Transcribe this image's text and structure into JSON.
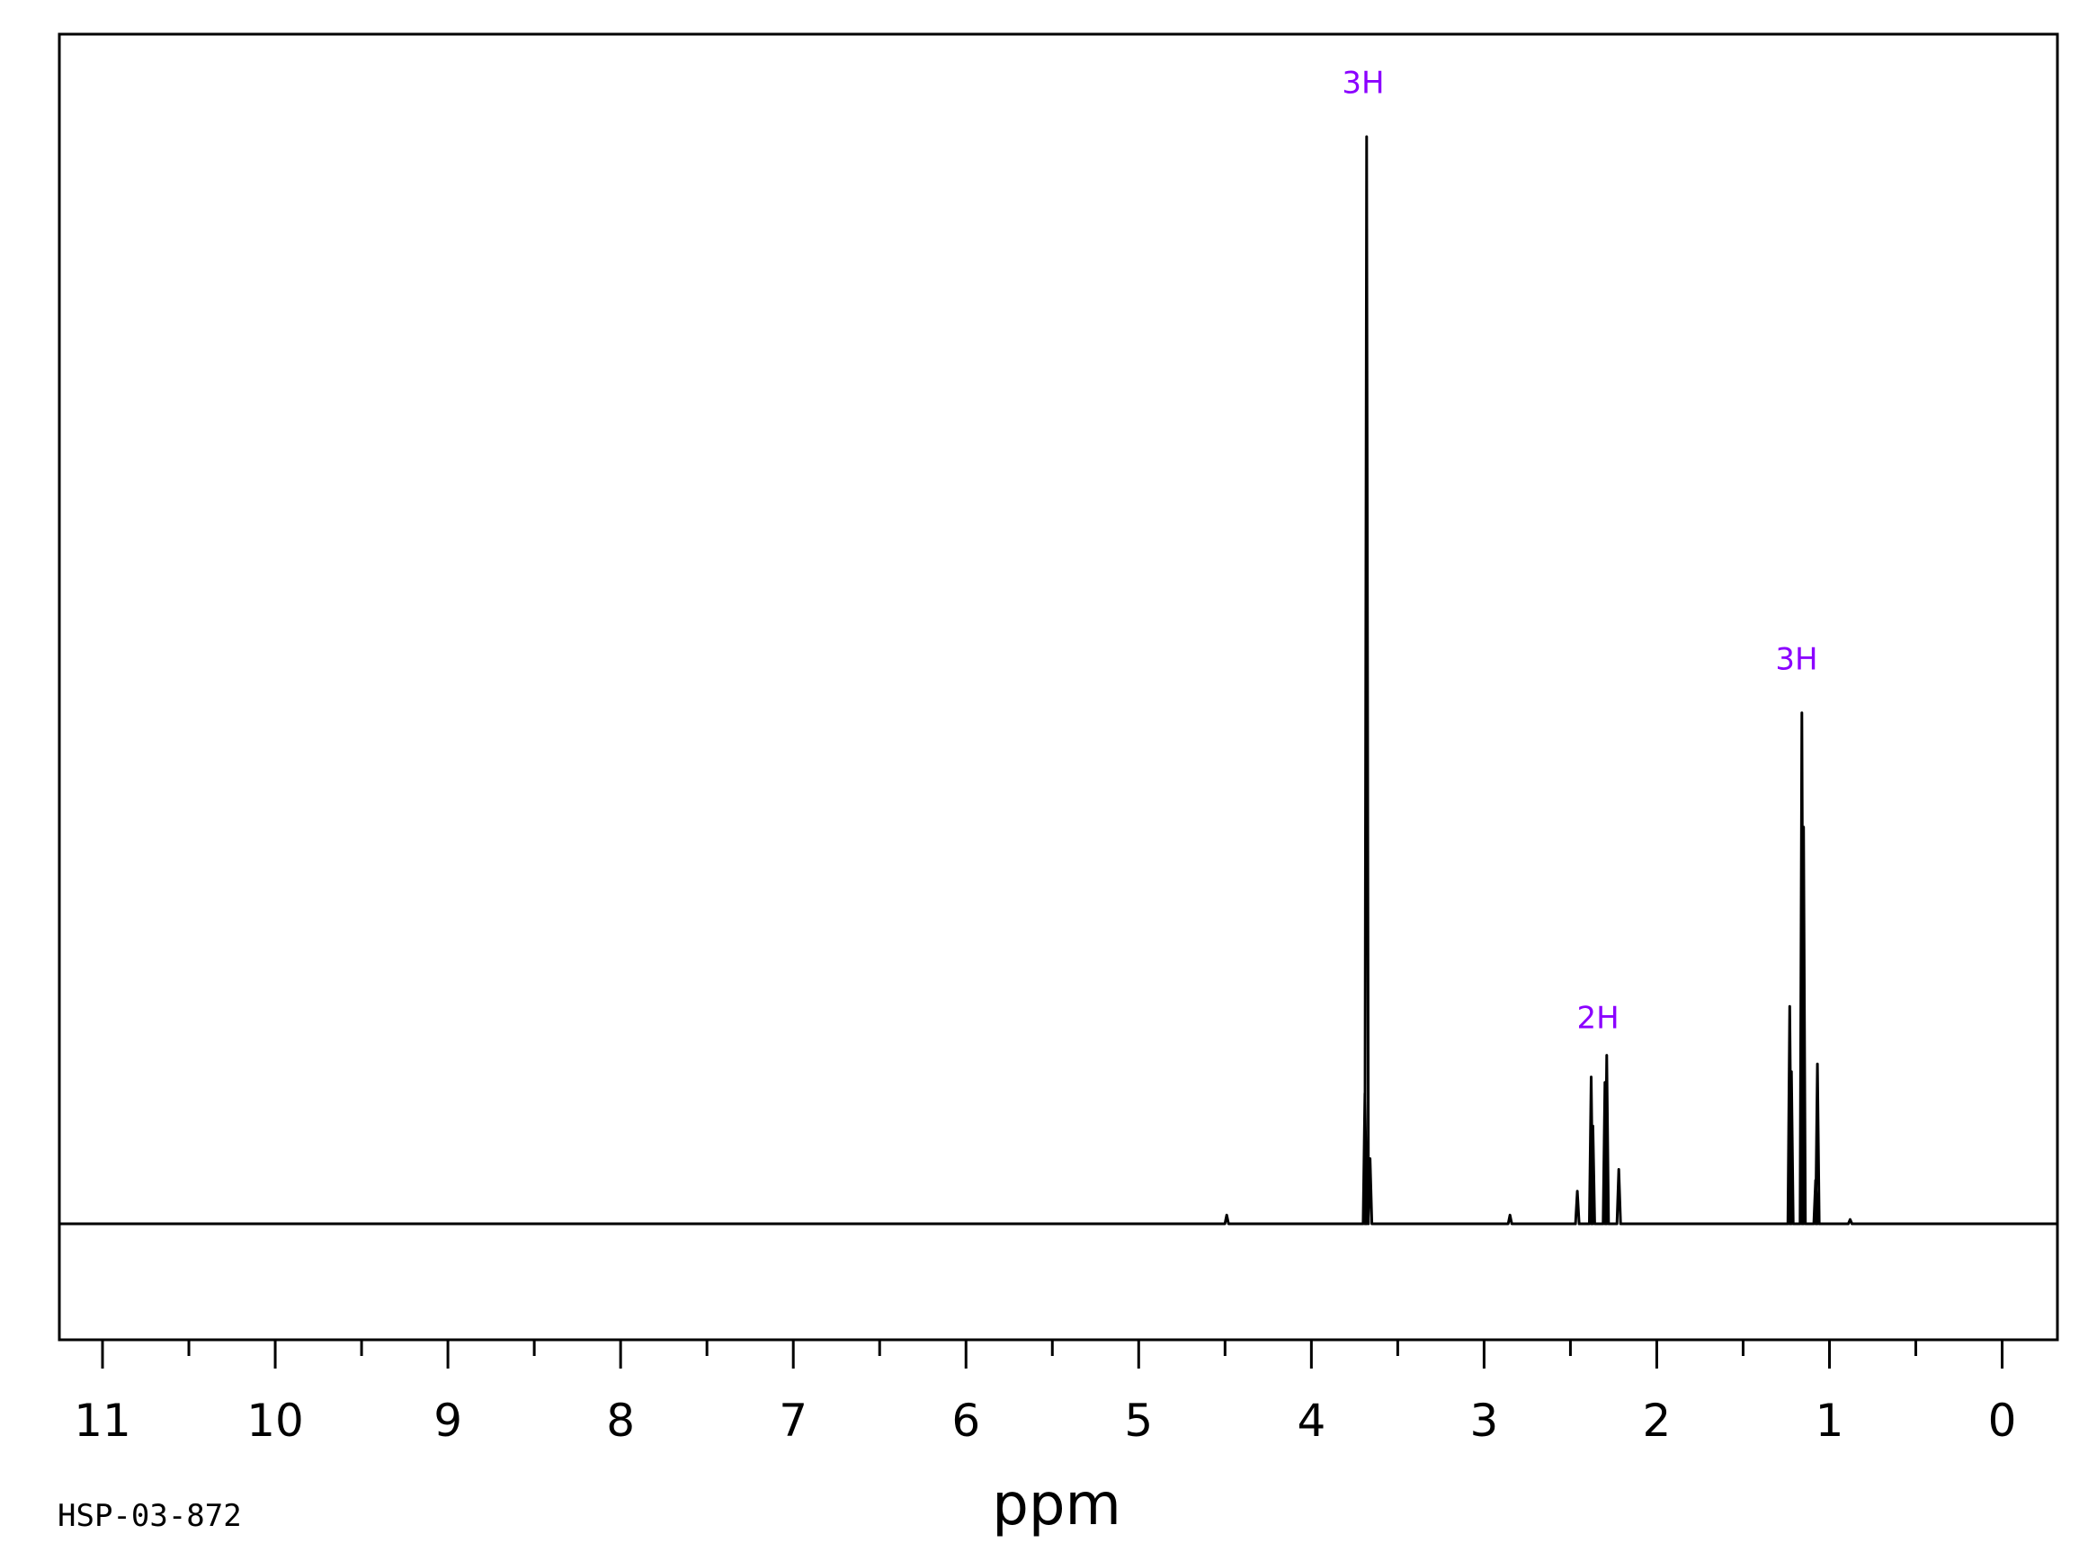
{
  "chart_data": {
    "type": "line",
    "title": "",
    "xlabel": "ppm",
    "ylabel": "",
    "xlim": [
      11.25,
      -0.32
    ],
    "x_reversed": true,
    "grid": false,
    "legend": "none",
    "major_ticks": [
      11,
      10,
      9,
      8,
      7,
      6,
      5,
      4,
      3,
      2,
      1,
      0
    ],
    "tick_labels": [
      "11",
      "10",
      "9",
      "8",
      "7",
      "6",
      "5",
      "4",
      "3",
      "2",
      "1",
      "0"
    ],
    "minor_ticks": [
      10.5,
      9.5,
      8.5,
      7.5,
      6.5,
      5.5,
      4.5,
      3.5,
      2.5,
      1.5,
      0.5
    ],
    "peaks": [
      {
        "ppm": 3.68,
        "height": 1.0
      },
      {
        "ppm": 3.69,
        "height": 0.12
      },
      {
        "ppm": 3.66,
        "height": 0.06
      },
      {
        "ppm": 2.46,
        "height": 0.03
      },
      {
        "ppm": 2.38,
        "height": 0.135
      },
      {
        "ppm": 2.37,
        "height": 0.09
      },
      {
        "ppm": 2.3,
        "height": 0.13
      },
      {
        "ppm": 2.29,
        "height": 0.155
      },
      {
        "ppm": 2.22,
        "height": 0.05
      },
      {
        "ppm": 1.23,
        "height": 0.2
      },
      {
        "ppm": 1.22,
        "height": 0.14
      },
      {
        "ppm": 1.16,
        "height": 0.47
      },
      {
        "ppm": 1.15,
        "height": 0.365
      },
      {
        "ppm": 1.08,
        "height": 0.04
      },
      {
        "ppm": 1.07,
        "height": 0.147
      }
    ],
    "small_marks": [
      {
        "ppm": 4.49,
        "height": 0.008
      },
      {
        "ppm": 2.85,
        "height": 0.008
      },
      {
        "ppm": 0.88,
        "height": 0.004
      }
    ],
    "integrations": [
      {
        "label": "3H",
        "ppm": 3.7,
        "height": 1.04
      },
      {
        "label": "2H",
        "ppm": 2.34,
        "height": 0.18
      },
      {
        "label": "3H",
        "ppm": 1.19,
        "height": 0.51
      }
    ],
    "integration_color": "#8B00FF",
    "line_color": "#000000"
  },
  "footer": {
    "code": "HSP-03-872"
  }
}
